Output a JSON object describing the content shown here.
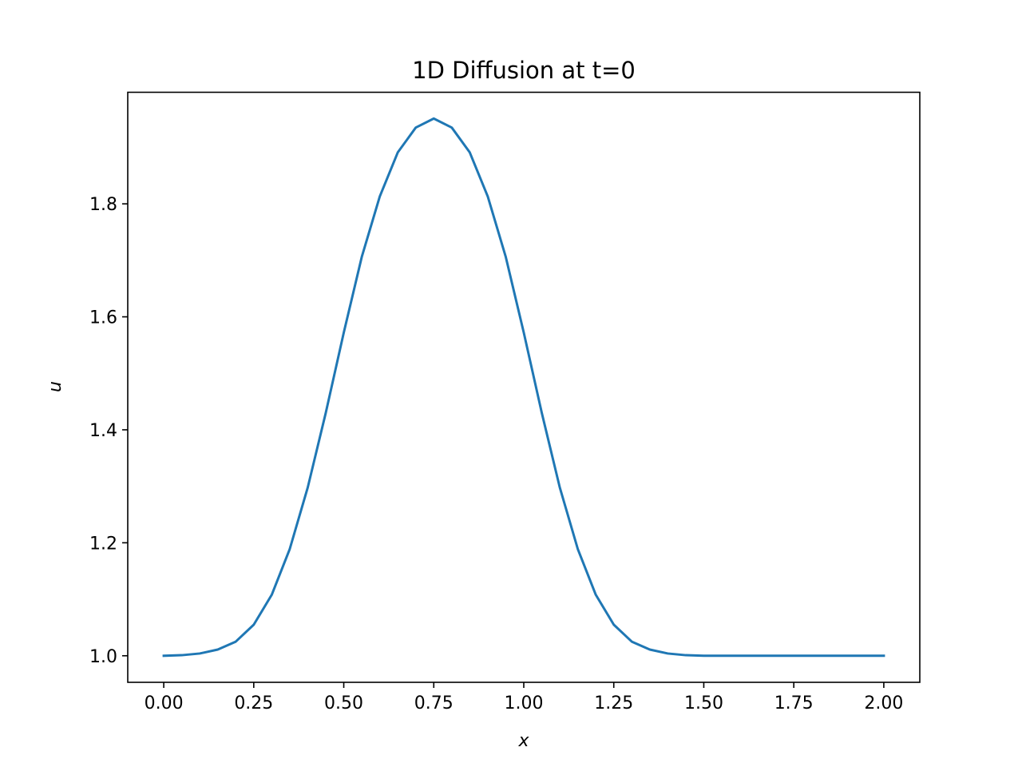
{
  "chart_data": {
    "type": "line",
    "title": "1D Diffusion at t=0",
    "xlabel": "x",
    "ylabel": "u",
    "xlim": [
      -0.1,
      2.1
    ],
    "ylim": [
      0.953,
      1.9975
    ],
    "xticks": [
      0.0,
      0.25,
      0.5,
      0.75,
      1.0,
      1.25,
      1.5,
      1.75,
      2.0
    ],
    "xtick_labels": [
      "0.00",
      "0.25",
      "0.50",
      "0.75",
      "1.00",
      "1.25",
      "1.50",
      "1.75",
      "2.00"
    ],
    "yticks": [
      1.0,
      1.2,
      1.4,
      1.6,
      1.8
    ],
    "ytick_labels": [
      "1.0",
      "1.2",
      "1.4",
      "1.6",
      "1.8"
    ],
    "grid": false,
    "series": [
      {
        "name": "u",
        "color": "#1f77b4",
        "x": [
          0.0,
          0.05,
          0.1,
          0.15,
          0.2,
          0.25,
          0.3,
          0.35,
          0.4,
          0.45,
          0.5,
          0.55,
          0.6,
          0.65,
          0.7,
          0.75,
          0.8,
          0.85,
          0.9,
          0.95,
          1.0,
          1.05,
          1.1,
          1.15,
          1.2,
          1.25,
          1.3,
          1.35,
          1.4,
          1.45,
          1.5,
          1.55,
          1.6,
          1.65,
          1.7,
          1.75,
          1.8,
          1.85,
          1.9,
          1.95,
          2.0
        ],
        "y": [
          1.0,
          1.001,
          1.004,
          1.011,
          1.025,
          1.055,
          1.108,
          1.189,
          1.298,
          1.43,
          1.572,
          1.706,
          1.813,
          1.891,
          1.935,
          1.951,
          1.935,
          1.891,
          1.813,
          1.706,
          1.572,
          1.43,
          1.298,
          1.189,
          1.108,
          1.055,
          1.025,
          1.011,
          1.004,
          1.001,
          1.0,
          1.0,
          1.0,
          1.0,
          1.0,
          1.0,
          1.0,
          1.0,
          1.0,
          1.0,
          1.0
        ]
      }
    ]
  }
}
